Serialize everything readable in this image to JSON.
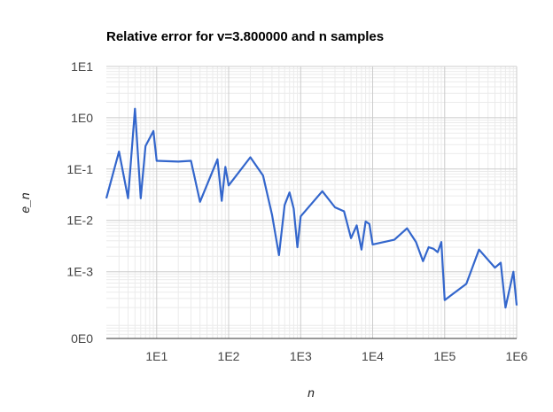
{
  "chart_data": {
    "type": "line",
    "title": "Relative error for v=3.800000 and n samples",
    "xlabel": "n",
    "ylabel": "e_n",
    "x_scale": "log",
    "y_scale": "log",
    "xlim": [
      2,
      1000000
    ],
    "ylim": [
      5e-05,
      10
    ],
    "grid": true,
    "legend": "none",
    "x_ticks": [
      {
        "value": 10,
        "label": "1E1"
      },
      {
        "value": 100,
        "label": "1E2"
      },
      {
        "value": 1000,
        "label": "1E3"
      },
      {
        "value": 10000,
        "label": "1E4"
      },
      {
        "value": 100000,
        "label": "1E5"
      },
      {
        "value": 1000000,
        "label": "1E6"
      }
    ],
    "y_ticks": [
      {
        "value": 10,
        "label": "1E1"
      },
      {
        "value": 1,
        "label": "1E0"
      },
      {
        "value": 0.1,
        "label": "1E-1"
      },
      {
        "value": 0.01,
        "label": "1E-2"
      },
      {
        "value": 0.001,
        "label": "1E-3"
      },
      {
        "value": 5e-05,
        "label": "0E0"
      }
    ],
    "series": [
      {
        "color": "#3366cc",
        "x": [
          2,
          3,
          4,
          5,
          6,
          7,
          9,
          10,
          20,
          30,
          40,
          70,
          80,
          90,
          100,
          200,
          300,
          400,
          500,
          600,
          700,
          800,
          900,
          1000,
          2000,
          3000,
          4000,
          5000,
          6000,
          7000,
          8000,
          9000,
          10000,
          20000,
          30000,
          40000,
          50000,
          60000,
          70000,
          80000,
          90000,
          100000,
          200000,
          300000,
          500000,
          600000,
          700000,
          900000,
          1000000
        ],
        "y": [
          0.027,
          0.22,
          0.027,
          1.5,
          0.027,
          0.28,
          0.55,
          0.145,
          0.14,
          0.145,
          0.023,
          0.155,
          0.024,
          0.11,
          0.048,
          0.17,
          0.075,
          0.013,
          0.0021,
          0.02,
          0.035,
          0.017,
          0.003,
          0.012,
          0.037,
          0.018,
          0.015,
          0.0045,
          0.008,
          0.0027,
          0.0095,
          0.0085,
          0.0034,
          0.0042,
          0.007,
          0.0038,
          0.0016,
          0.003,
          0.0028,
          0.0024,
          0.0038,
          0.00028,
          0.00058,
          0.0027,
          0.0012,
          0.0015,
          0.0002,
          0.001,
          0.00022
        ]
      }
    ]
  }
}
